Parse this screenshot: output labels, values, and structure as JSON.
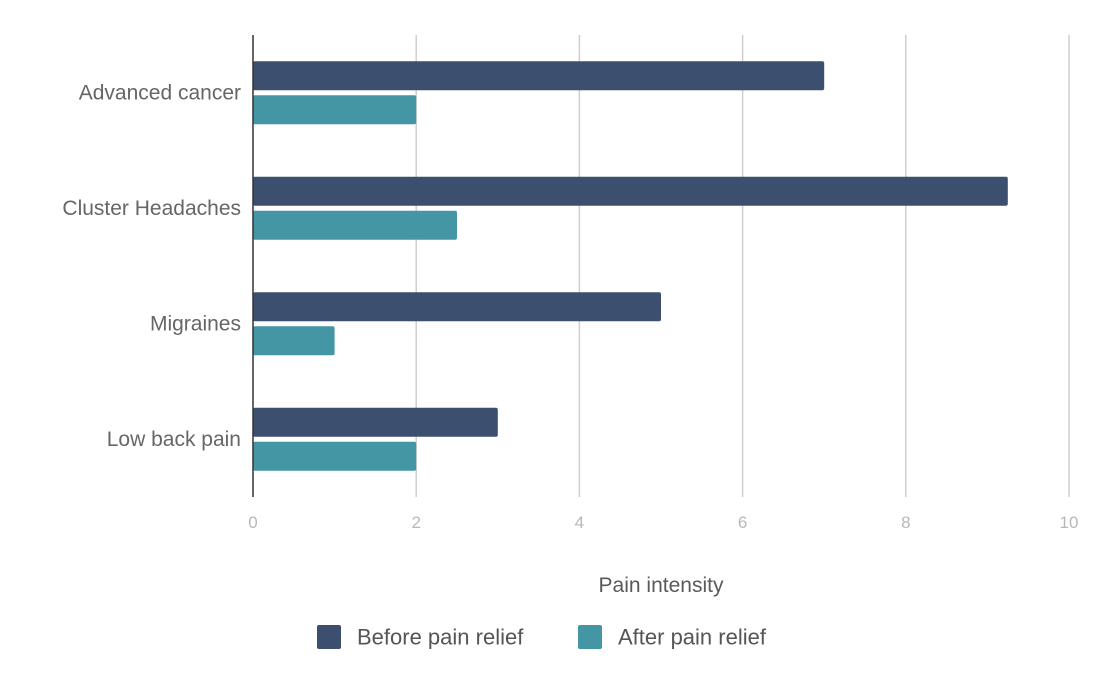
{
  "chart_data": {
    "type": "bar",
    "orientation": "horizontal",
    "title": "",
    "xlabel": "Pain intensity",
    "ylabel": "",
    "categories": [
      "Advanced cancer",
      "Cluster Headaches",
      "Migraines",
      "Low back pain"
    ],
    "series": [
      {
        "name": "Before pain relief",
        "color": "#3d4f6e",
        "values": [
          7,
          9.25,
          5,
          3
        ]
      },
      {
        "name": "After pain relief",
        "color": "#4496a4",
        "values": [
          2,
          2.5,
          1,
          2
        ]
      }
    ],
    "xlim": [
      0,
      10
    ],
    "xticks": [
      "0",
      "2",
      "4",
      "6",
      "8",
      "10"
    ],
    "grid": true,
    "legend_position": "bottom"
  }
}
